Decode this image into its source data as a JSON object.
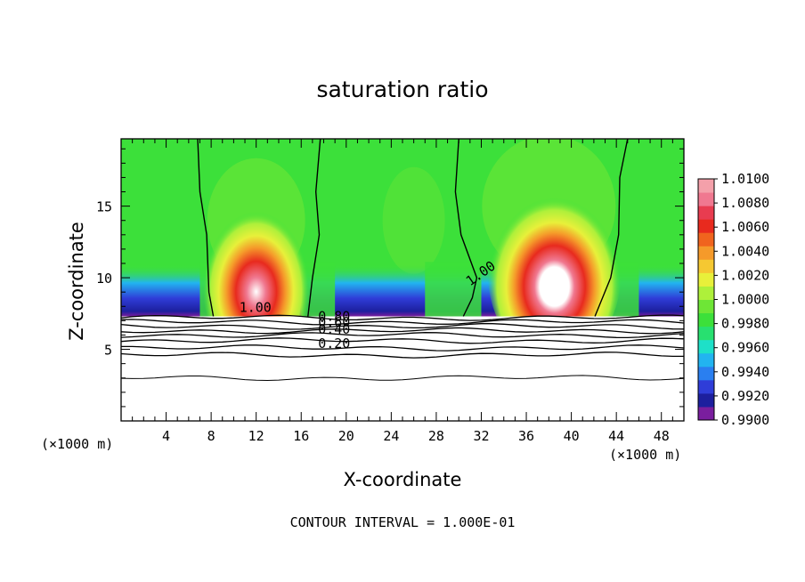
{
  "chart_data": {
    "type": "heatmap",
    "title": "saturation ratio",
    "xlabel": "X-coordinate",
    "ylabel": "Z-coordinate",
    "x_unit": "(×1000 m)",
    "xlim": [
      0,
      50
    ],
    "ylim": [
      0,
      19.7
    ],
    "x_ticks": [
      4,
      8,
      12,
      16,
      20,
      24,
      28,
      32,
      36,
      40,
      44,
      48
    ],
    "y_ticks": [
      5,
      10,
      15
    ],
    "colorbar": {
      "min": 0.99,
      "max": 1.01,
      "labels": [
        "1.0100",
        "1.0080",
        "1.0060",
        "1.0040",
        "1.0020",
        "1.0000",
        "0.9980",
        "0.9960",
        "0.9940",
        "0.9920",
        "0.9900"
      ],
      "colors": [
        "#7a1e9e",
        "#1d1f9e",
        "#2f3dd8",
        "#2a7ff0",
        "#22b4f0",
        "#1ee0c8",
        "#28e070",
        "#3ce03a",
        "#6ee636",
        "#aef03a",
        "#e8f03a",
        "#f5c832",
        "#f59a2a",
        "#f0641e",
        "#e82a1e",
        "#e83c50",
        "#f07890",
        "#f4a0aa"
      ]
    },
    "contour_labels": [
      "1.00",
      "0.80",
      "0.60",
      "0.40",
      "0.20",
      "1.00"
    ],
    "contour_interval_text": "CONTOUR INTERVAL = 1.000E-01",
    "cloud_base_z": 7.3,
    "updrafts": [
      {
        "x": 12,
        "z_peak": 10.2,
        "max": 1.0095
      },
      {
        "x": 38.5,
        "z_peak": 11.0,
        "max": 1.0105
      }
    ],
    "series": [
      {
        "name": "1.00 contour near x=8",
        "x": [
          6.8,
          7.0,
          7.6,
          7.8,
          8.2
        ],
        "z": [
          19.7,
          16,
          13,
          9,
          7.3
        ]
      },
      {
        "name": "1.00 contour near x=17",
        "x": [
          17.7,
          17.3,
          17.6,
          17.0,
          16.6
        ],
        "z": [
          19.7,
          16,
          13,
          10,
          7.3
        ]
      },
      {
        "name": "1.00 contour near x=29",
        "x": [
          30.0,
          29.7,
          30.2,
          31.6,
          31.2,
          30.4
        ],
        "z": [
          19.7,
          16,
          13,
          10,
          8.6,
          7.3
        ]
      },
      {
        "name": "1.00 contour near x=43",
        "x": [
          45.0,
          44.3,
          44.2,
          43.5,
          42.1
        ],
        "z": [
          19.7,
          17,
          13,
          10,
          7.3
        ]
      },
      {
        "name": "subsaturated layer contours",
        "z_levels": [
          7.2,
          6.9,
          6.6,
          6.3,
          6.0,
          5.6,
          5.1,
          4.6,
          3.0
        ]
      }
    ]
  }
}
